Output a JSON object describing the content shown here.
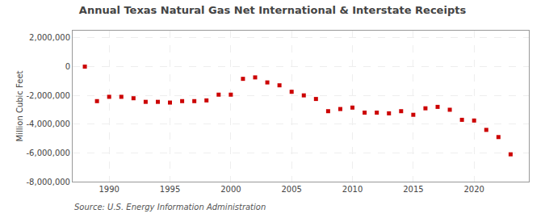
{
  "chart_data": {
    "type": "scatter",
    "title": "Annual Texas Natural Gas Net International & Interstate Receipts",
    "ylabel": "Million Cubic Feet",
    "annotations": [
      "Source: U.S. Energy Information Administration"
    ],
    "color": "#cc0000",
    "marker": "square",
    "grid": true,
    "x": [
      1988,
      1989,
      1990,
      1991,
      1992,
      1993,
      1994,
      1995,
      1996,
      1997,
      1998,
      1999,
      2000,
      2001,
      2002,
      2003,
      2004,
      2005,
      2006,
      2007,
      2008,
      2009,
      2010,
      2011,
      2012,
      2013,
      2014,
      2015,
      2016,
      2017,
      2018,
      2019,
      2020,
      2021,
      2022,
      2023
    ],
    "values": [
      0,
      -2400000,
      -2100000,
      -2100000,
      -2200000,
      -2450000,
      -2450000,
      -2500000,
      -2400000,
      -2400000,
      -2350000,
      -1950000,
      -1950000,
      -850000,
      -750000,
      -1100000,
      -1300000,
      -1750000,
      -2000000,
      -2250000,
      -3100000,
      -2950000,
      -2850000,
      -3200000,
      -3200000,
      -3250000,
      -3100000,
      -3350000,
      -2900000,
      -2800000,
      -3000000,
      -3700000,
      -3750000,
      -4400000,
      -4900000,
      -6100000
    ],
    "xlim": [
      1987.0,
      2024.5
    ],
    "xticks": [
      1990,
      1995,
      2000,
      2005,
      2010,
      2015,
      2020
    ],
    "ylim": [
      -8000000,
      2500000
    ],
    "yticks": [
      {
        "value": -8000000,
        "label": "-8,000,000"
      },
      {
        "value": -6000000,
        "label": "-6,000,000"
      },
      {
        "value": -4000000,
        "label": "-4,000,000"
      },
      {
        "value": -2000000,
        "label": "-2,000,000"
      },
      0,
      {
        "value": 2000000,
        "label": "2,000,000"
      }
    ]
  }
}
